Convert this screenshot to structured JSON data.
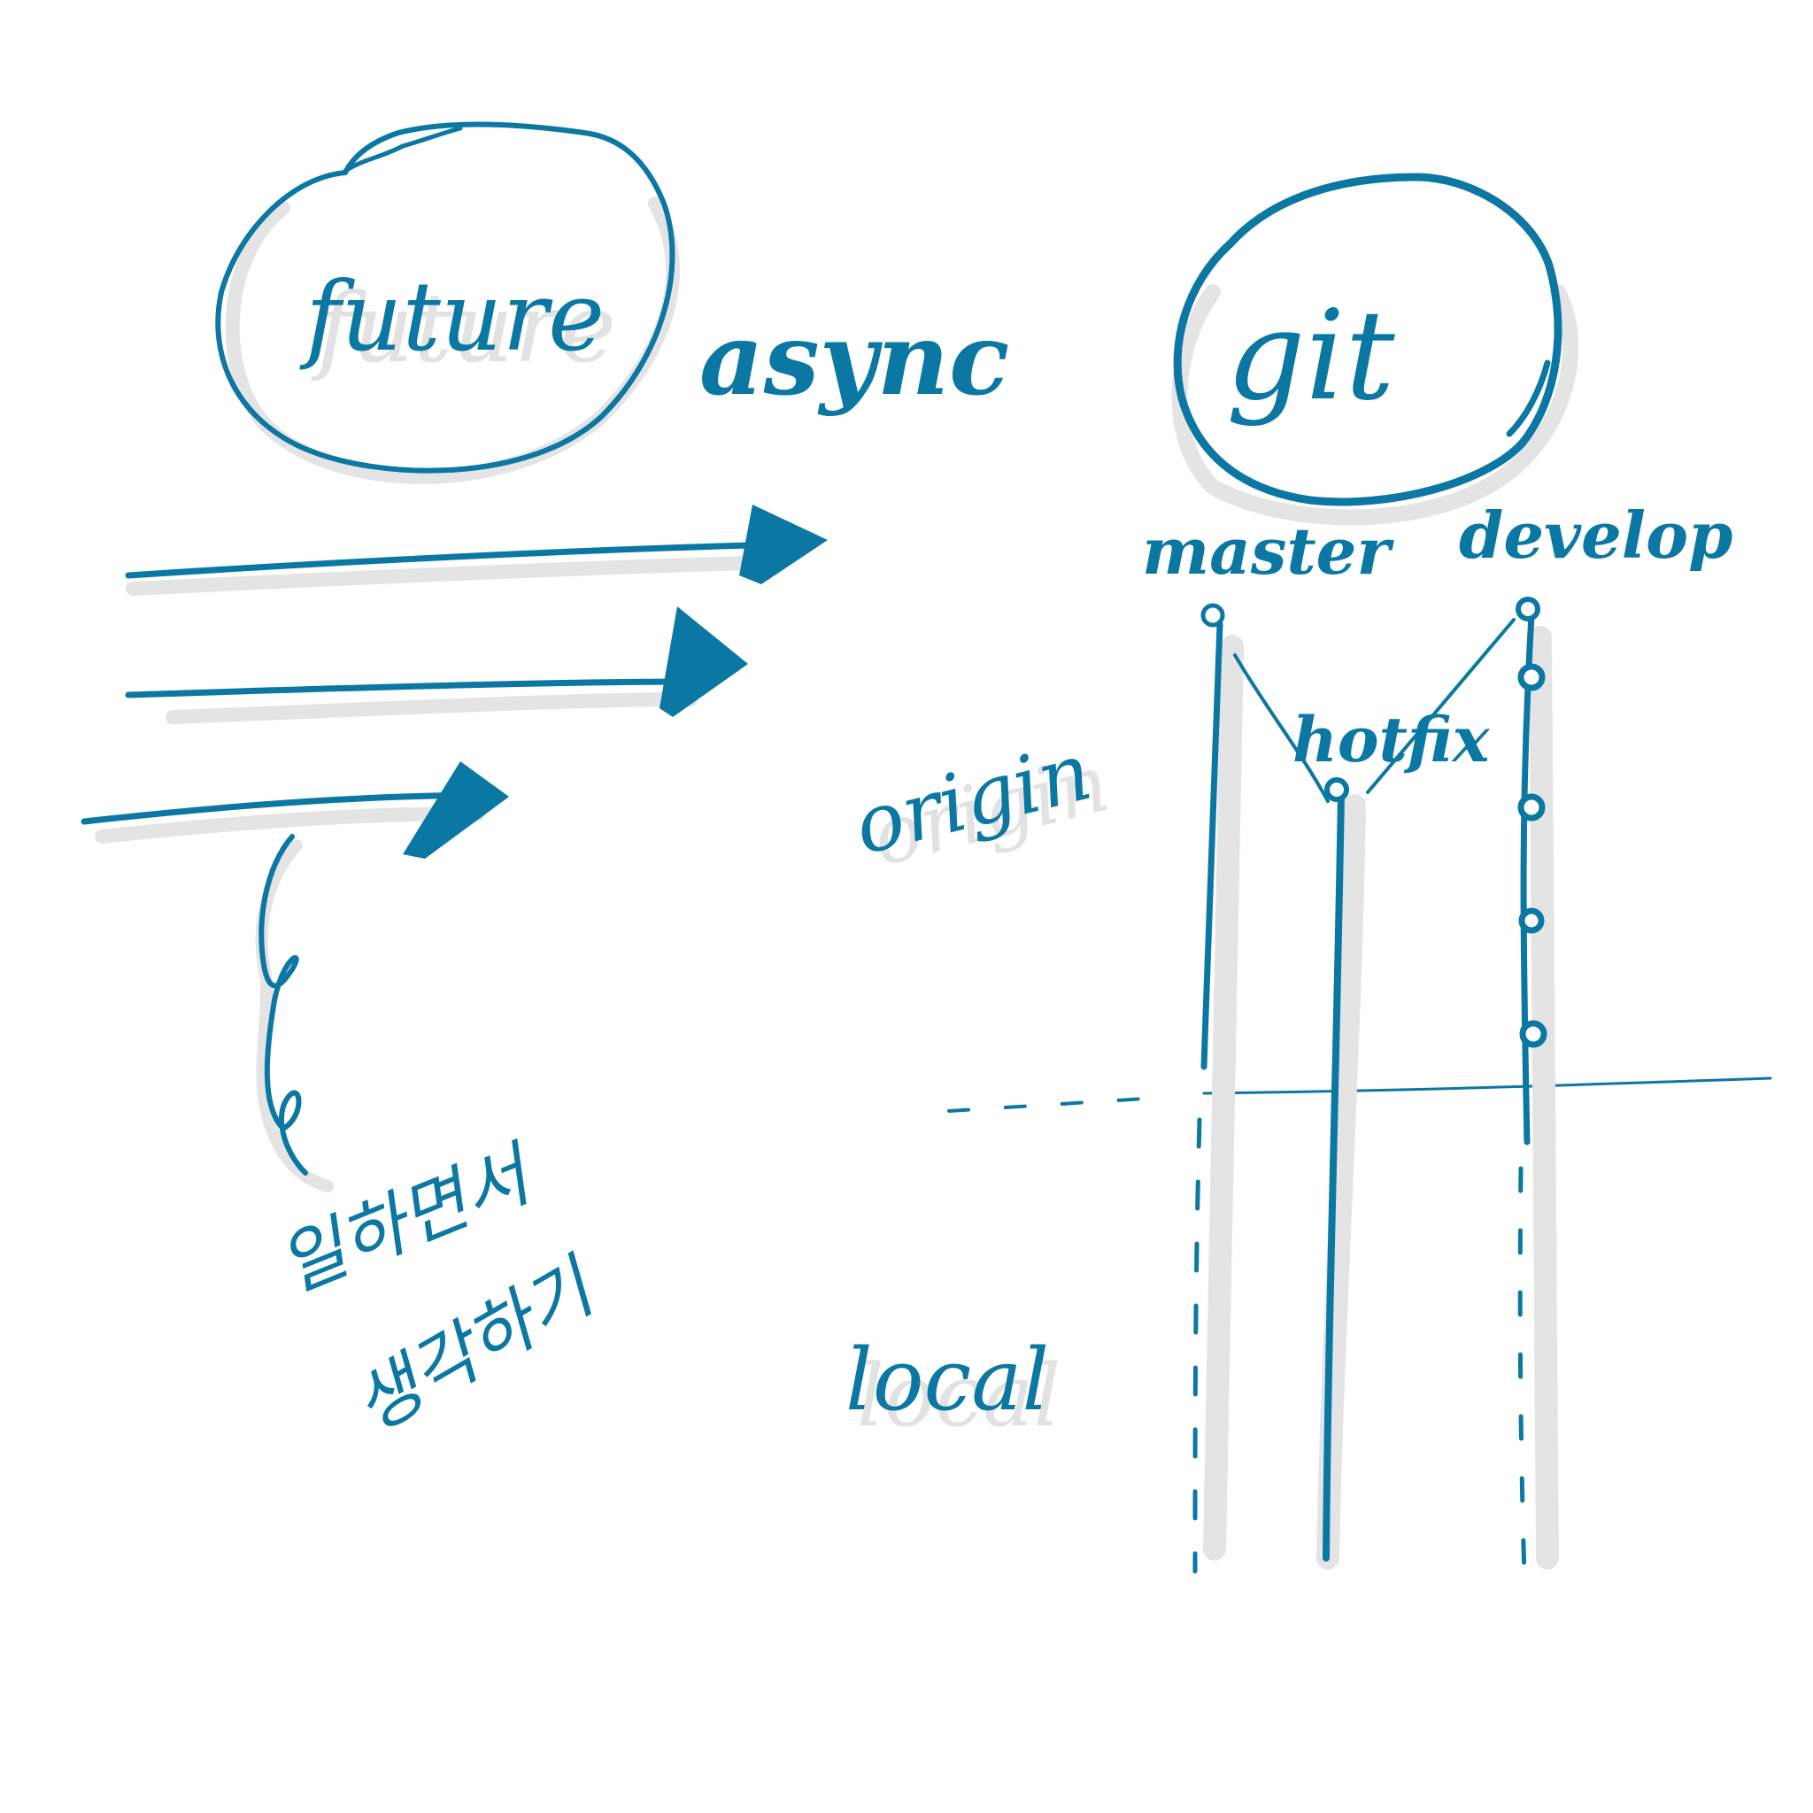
{
  "labels": {
    "future": "future",
    "async": "async",
    "git": "git",
    "master": "master",
    "develop": "develop",
    "hotfix": "hotfix",
    "origin": "origin",
    "local": "local",
    "korean_line1": "일하면서",
    "korean_line2": "생각하기"
  },
  "colors": {
    "ink": "#0b77a3",
    "shadow": "#e4e4e4",
    "background": "#ffffff"
  }
}
